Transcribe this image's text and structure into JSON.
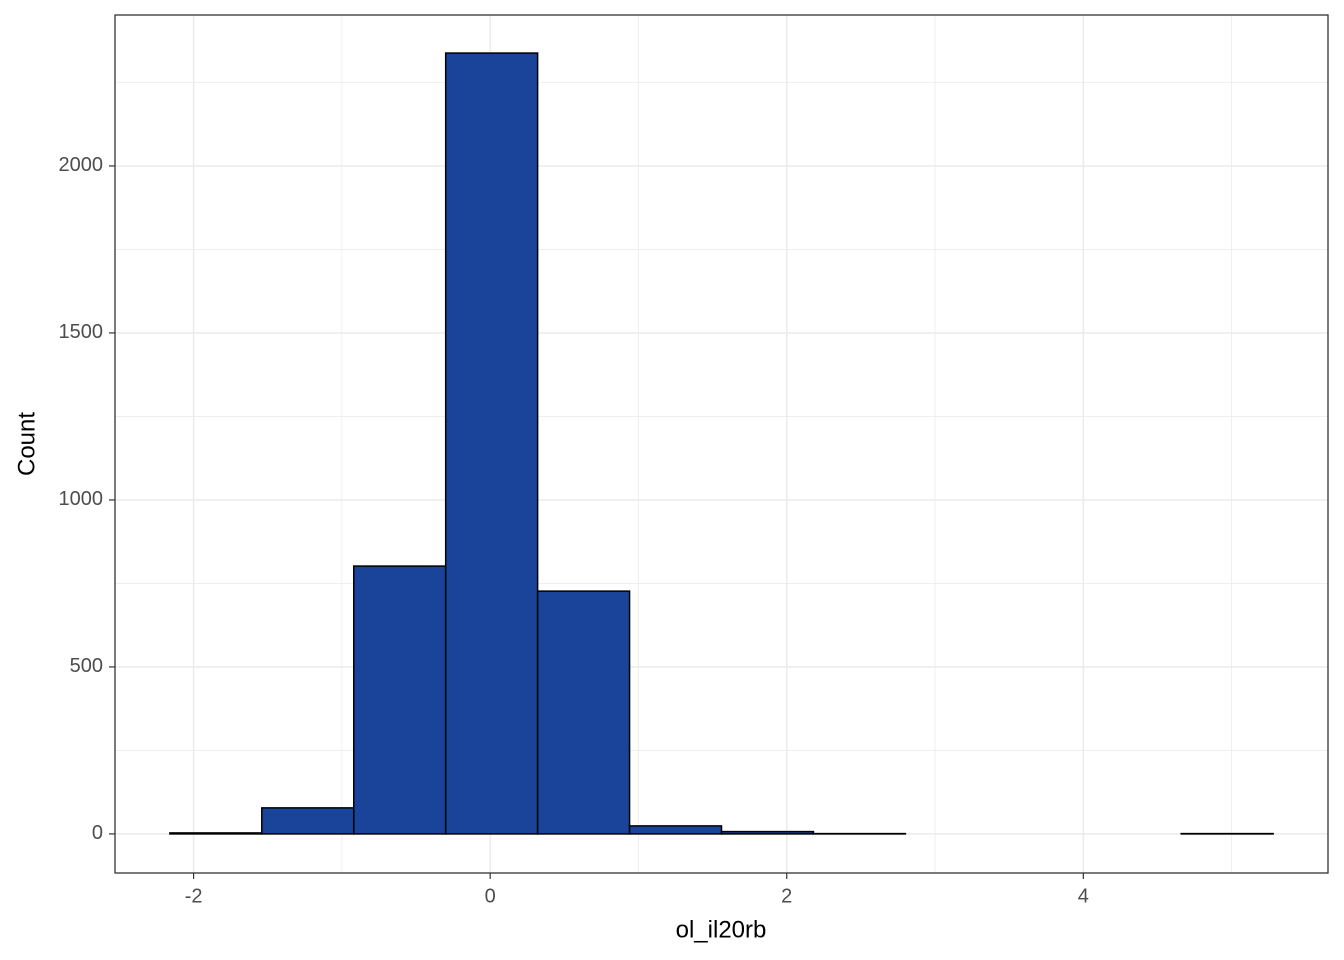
{
  "chart_data": {
    "type": "histogram",
    "x_label": "ol_il20rb",
    "y_label": "Count",
    "bins": [
      -2.16,
      -1.54,
      -0.92,
      -0.3,
      0.32,
      0.94,
      1.56,
      2.18,
      2.8,
      3.42,
      4.04,
      4.66,
      5.28
    ],
    "values": [
      3,
      78,
      802,
      2338,
      727,
      24,
      7,
      1,
      0,
      0,
      0,
      1
    ],
    "color": "#19449a",
    "xlim": [
      -2.53,
      5.65
    ],
    "ylim": [
      -117,
      2452
    ],
    "xticks": [
      -2,
      0,
      2,
      4
    ],
    "yticks": [
      0,
      500,
      1000,
      1500,
      2000
    ],
    "x_minor_grid": [
      -1,
      1,
      3,
      5
    ],
    "y_minor_grid": [
      250,
      750,
      1250,
      1750,
      2250
    ],
    "grid": true
  }
}
